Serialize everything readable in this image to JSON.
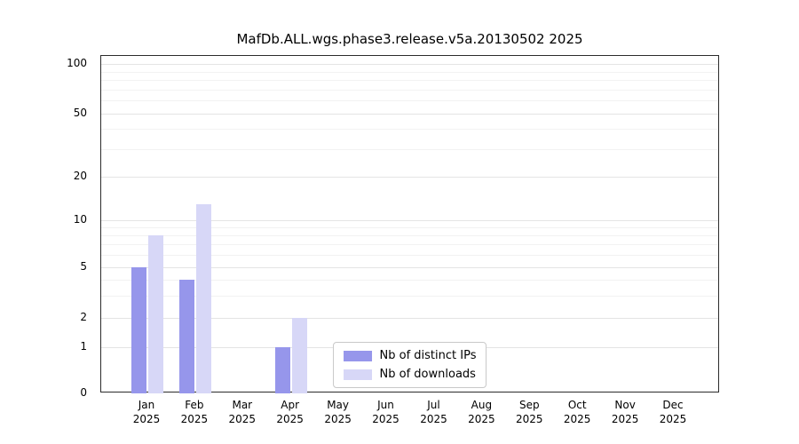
{
  "chart_data": {
    "type": "bar",
    "title": "MafDb.ALL.wgs.phase3.release.v5a.20130502 2025",
    "year": "2025",
    "categories": [
      "Jan",
      "Feb",
      "Mar",
      "Apr",
      "May",
      "Jun",
      "Jul",
      "Aug",
      "Sep",
      "Oct",
      "Nov",
      "Dec"
    ],
    "series": [
      {
        "name": "Nb of distinct IPs",
        "color": "#9696eb",
        "values": [
          5,
          4,
          0,
          1,
          0,
          0,
          0,
          0,
          0,
          0,
          0,
          0
        ]
      },
      {
        "name": "Nb of downloads",
        "color": "#d7d7f7",
        "values": [
          8,
          13,
          0,
          2,
          0,
          0,
          0,
          0,
          0,
          0,
          0,
          0
        ]
      }
    ],
    "y_ticks": [
      0,
      1,
      2,
      5,
      10,
      20,
      50,
      100
    ],
    "y_minor_ticks": [
      3,
      4,
      6,
      7,
      8,
      9,
      30,
      40,
      60,
      70,
      80,
      90
    ],
    "ylim": [
      0,
      100
    ],
    "scale": "log",
    "grid": true,
    "legend_position": "bottom-center",
    "colors": {
      "background": "#ffffff",
      "grid_major": "#e4e4e4",
      "grid_minor": "#f2f2f2",
      "spine": "#2b2b2b"
    }
  }
}
